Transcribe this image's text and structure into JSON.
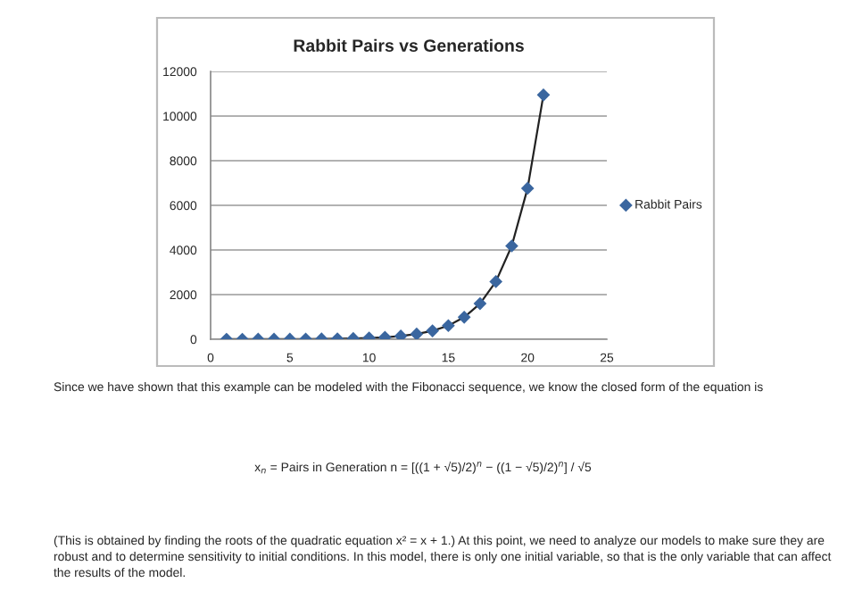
{
  "chart_data": {
    "type": "scatter",
    "title": "Rabbit Pairs vs Generations",
    "x": [
      1,
      2,
      3,
      4,
      5,
      6,
      7,
      8,
      9,
      10,
      11,
      12,
      13,
      14,
      15,
      16,
      17,
      18,
      19,
      20,
      21
    ],
    "series": [
      {
        "name": "Rabbit Pairs",
        "color": "#3a669f",
        "marker": "diamond",
        "values": [
          1,
          1,
          2,
          3,
          5,
          8,
          13,
          21,
          34,
          55,
          89,
          144,
          233,
          377,
          610,
          987,
          1597,
          2584,
          4181,
          6765,
          10946
        ]
      },
      {
        "type": "line",
        "color": "#222222",
        "line_style": "solid",
        "marker": "none",
        "values": [
          1,
          1,
          2,
          3,
          5,
          8,
          13,
          21,
          34,
          55,
          89,
          144,
          233,
          377,
          610,
          987,
          1597,
          2584,
          4181,
          6765,
          10946
        ]
      }
    ],
    "xlim": [
      0,
      25
    ],
    "xticks": [
      0,
      5,
      10,
      15,
      20,
      25
    ],
    "ylim": [
      0,
      12000
    ],
    "yticks": [
      0,
      2000,
      4000,
      6000,
      8000,
      10000,
      12000
    ],
    "grid": "y",
    "legend": "right",
    "annotations": [
      "Since we have shown that this example can be modeled with the Fibonacci sequence, we know the closed form of the equation is",
      "x$_{n}$ = Pairs in Generation n = [((1 + √5)/2)$^{n}$ − ((1 − √5)/2)$^{n}$] / √5",
      "(This is obtained by finding the roots of the quadratic equation x² = x + 1.) At this point, we need to analyze our models to make sure they are\nrobust and to determine sensitivity to initial conditions. In this model, there is only one initial variable, so that is the only variable that can affect\nthe results of the model."
    ]
  }
}
